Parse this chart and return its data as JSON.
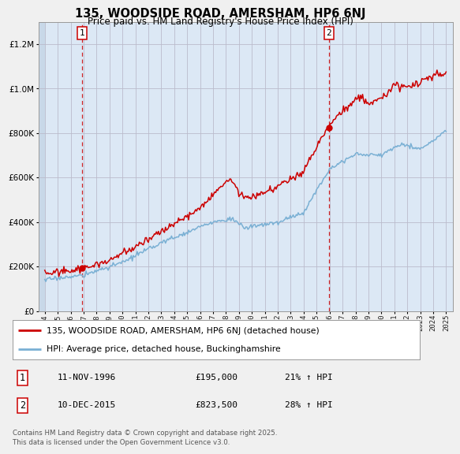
{
  "title": "135, WOODSIDE ROAD, AMERSHAM, HP6 6NJ",
  "subtitle": "Price paid vs. HM Land Registry's House Price Index (HPI)",
  "legend_line1": "135, WOODSIDE ROAD, AMERSHAM, HP6 6NJ (detached house)",
  "legend_line2": "HPI: Average price, detached house, Buckinghamshire",
  "footnote": "Contains HM Land Registry data © Crown copyright and database right 2025.\nThis data is licensed under the Open Government Licence v3.0.",
  "sale1_label": "1",
  "sale1_date": "11-NOV-1996",
  "sale1_price": "£195,000",
  "sale1_hpi": "21% ↑ HPI",
  "sale2_label": "2",
  "sale2_date": "10-DEC-2015",
  "sale2_price": "£823,500",
  "sale2_hpi": "28% ↑ HPI",
  "sale1_year": 1996.87,
  "sale1_value": 195000,
  "sale2_year": 2015.95,
  "sale2_value": 823500,
  "price_color": "#cc0000",
  "hpi_color": "#7ab0d4",
  "grid_color": "#bbbbcc",
  "bg_color": "#f0f0f0",
  "plot_bg": "#dce8f5",
  "dashed_color": "#cc0000",
  "ylim_max": 1300000,
  "xmin": 1993.5,
  "xmax": 2025.5
}
